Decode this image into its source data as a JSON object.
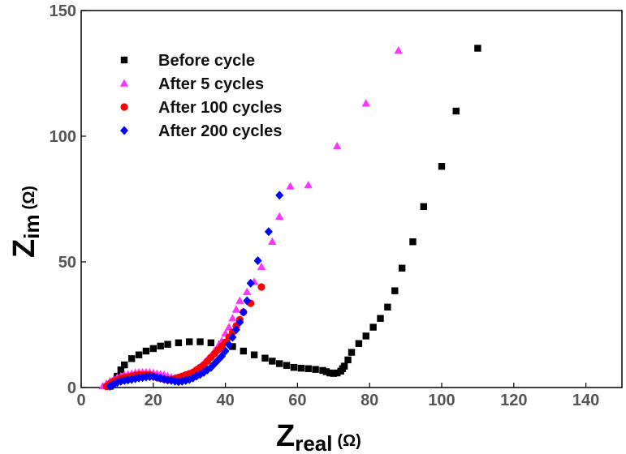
{
  "chart_data": {
    "type": "scatter",
    "title": "",
    "xlabel": {
      "main": "Z",
      "sub": "real",
      "unit": "(Ω)"
    },
    "ylabel": {
      "main": "Z",
      "sub": "im",
      "unit": "(Ω)"
    },
    "xlim": [
      0,
      150
    ],
    "ylim": [
      0,
      150
    ],
    "xticks": [
      0,
      20,
      40,
      60,
      80,
      100,
      120,
      140
    ],
    "yticks": [
      0,
      50,
      100,
      150
    ],
    "grid": false,
    "legend": "top-left",
    "series": [
      {
        "name": "Before cycle",
        "marker": "square",
        "color": "#000000",
        "points": [
          [
            8,
            0.5
          ],
          [
            9,
            2
          ],
          [
            10,
            4.5
          ],
          [
            11,
            7
          ],
          [
            12,
            9
          ],
          [
            14,
            11.5
          ],
          [
            16,
            13
          ],
          [
            18,
            14.5
          ],
          [
            20,
            15.5
          ],
          [
            22,
            16.5
          ],
          [
            24,
            17.2
          ],
          [
            27,
            17.8
          ],
          [
            30,
            18.2
          ],
          [
            33,
            18.2
          ],
          [
            36,
            17.8
          ],
          [
            39,
            17.2
          ],
          [
            42,
            16.3
          ],
          [
            45,
            14.5
          ],
          [
            48,
            13
          ],
          [
            51,
            11.7
          ],
          [
            53,
            10.5
          ],
          [
            55,
            9.5
          ],
          [
            57,
            8.8
          ],
          [
            59,
            8
          ],
          [
            61,
            7.7
          ],
          [
            63,
            7.5
          ],
          [
            65,
            7.2
          ],
          [
            67,
            6.8
          ],
          [
            68,
            6.3
          ],
          [
            69,
            5.8
          ],
          [
            70,
            5.6
          ],
          [
            71,
            5.8
          ],
          [
            72,
            6.5
          ],
          [
            72.5,
            7.5
          ],
          [
            73,
            8.5
          ],
          [
            74,
            11
          ],
          [
            75,
            14
          ],
          [
            77,
            17.5
          ],
          [
            79,
            20.5
          ],
          [
            81,
            24
          ],
          [
            83,
            27.5
          ],
          [
            85,
            32
          ],
          [
            87,
            38.5
          ],
          [
            89,
            47.5
          ],
          [
            92,
            58
          ],
          [
            95,
            72
          ],
          [
            100,
            88
          ],
          [
            104,
            110
          ],
          [
            110,
            135
          ]
        ]
      },
      {
        "name": "After 5 cycles",
        "marker": "triangle",
        "color": "#ff33ff",
        "points": [
          [
            6,
            0.5
          ],
          [
            7,
            1.5
          ],
          [
            8,
            2.5
          ],
          [
            9,
            3.2
          ],
          [
            10,
            4
          ],
          [
            11,
            4.5
          ],
          [
            12,
            5
          ],
          [
            13,
            5.2
          ],
          [
            14,
            5.5
          ],
          [
            15,
            5.8
          ],
          [
            16,
            6
          ],
          [
            17,
            6
          ],
          [
            18,
            6
          ],
          [
            19,
            6
          ],
          [
            20,
            5.8
          ],
          [
            21,
            5.5
          ],
          [
            22,
            5.2
          ],
          [
            23,
            5
          ],
          [
            24,
            4.5
          ],
          [
            25,
            4
          ],
          [
            26,
            3.8
          ],
          [
            27,
            3.8
          ],
          [
            28,
            4
          ],
          [
            29,
            4.5
          ],
          [
            30,
            5
          ],
          [
            31,
            6
          ],
          [
            32,
            7
          ],
          [
            33,
            8
          ],
          [
            34,
            9.5
          ],
          [
            35,
            11
          ],
          [
            36,
            12.5
          ],
          [
            37,
            14.5
          ],
          [
            38,
            16.5
          ],
          [
            39,
            18.5
          ],
          [
            40,
            21.5
          ],
          [
            41,
            24
          ],
          [
            42,
            27.5
          ],
          [
            43,
            31
          ],
          [
            44,
            34.5
          ],
          [
            46,
            38
          ],
          [
            48,
            42
          ],
          [
            50,
            48
          ],
          [
            53,
            58
          ],
          [
            55,
            68
          ],
          [
            58,
            80
          ],
          [
            63,
            80.5
          ],
          [
            71,
            96
          ],
          [
            79,
            113
          ],
          [
            88,
            134
          ]
        ]
      },
      {
        "name": "After 100 cycles",
        "marker": "circle",
        "color": "#ff0000",
        "points": [
          [
            7,
            0.5
          ],
          [
            8,
            1.5
          ],
          [
            9,
            2.5
          ],
          [
            10,
            3
          ],
          [
            11,
            3.5
          ],
          [
            12,
            4
          ],
          [
            13,
            4.2
          ],
          [
            14,
            4.5
          ],
          [
            15,
            4.8
          ],
          [
            16,
            5
          ],
          [
            17,
            5
          ],
          [
            18,
            5
          ],
          [
            19,
            5
          ],
          [
            20,
            4.5
          ],
          [
            21,
            4
          ],
          [
            22,
            3.6
          ],
          [
            23,
            3.3
          ],
          [
            24,
            3
          ],
          [
            25,
            3.2
          ],
          [
            26,
            3.5
          ],
          [
            27,
            4
          ],
          [
            28,
            4.5
          ],
          [
            29,
            5
          ],
          [
            30,
            5.5
          ],
          [
            31,
            6
          ],
          [
            32,
            7
          ],
          [
            33,
            8
          ],
          [
            34,
            9
          ],
          [
            35,
            10.5
          ],
          [
            36,
            12
          ],
          [
            37,
            13.5
          ],
          [
            38,
            15
          ],
          [
            39,
            16.5
          ],
          [
            40,
            18
          ],
          [
            41,
            20
          ],
          [
            42,
            22
          ],
          [
            43,
            24.5
          ],
          [
            44,
            27
          ],
          [
            45,
            30
          ],
          [
            47,
            33.5
          ],
          [
            50,
            40
          ]
        ]
      },
      {
        "name": "After 200 cycles",
        "marker": "diamond",
        "color": "#0000ff",
        "points": [
          [
            8,
            0.5
          ],
          [
            9,
            1.2
          ],
          [
            10,
            2
          ],
          [
            11,
            2.5
          ],
          [
            12,
            2.8
          ],
          [
            13,
            3
          ],
          [
            14,
            3.2
          ],
          [
            15,
            3.5
          ],
          [
            16,
            3.8
          ],
          [
            17,
            4
          ],
          [
            18,
            4.2
          ],
          [
            19,
            4.3
          ],
          [
            20,
            4.3
          ],
          [
            21,
            4
          ],
          [
            22,
            3.7
          ],
          [
            23,
            3.3
          ],
          [
            24,
            3
          ],
          [
            25,
            2.8
          ],
          [
            26,
            2.5
          ],
          [
            27,
            2.3
          ],
          [
            28,
            2.5
          ],
          [
            29,
            2.8
          ],
          [
            30,
            3.2
          ],
          [
            31,
            3.8
          ],
          [
            32,
            4.5
          ],
          [
            33,
            5.2
          ],
          [
            34,
            6
          ],
          [
            35,
            7
          ],
          [
            36,
            8
          ],
          [
            37,
            9.5
          ],
          [
            38,
            11
          ],
          [
            39,
            12.5
          ],
          [
            40,
            14.5
          ],
          [
            41,
            17
          ],
          [
            42,
            20
          ],
          [
            43,
            23
          ],
          [
            44,
            26
          ],
          [
            45,
            30
          ],
          [
            46,
            34.5
          ],
          [
            47,
            41.5
          ],
          [
            49,
            50.5
          ],
          [
            52,
            62
          ],
          [
            55,
            76.5
          ]
        ]
      }
    ]
  }
}
